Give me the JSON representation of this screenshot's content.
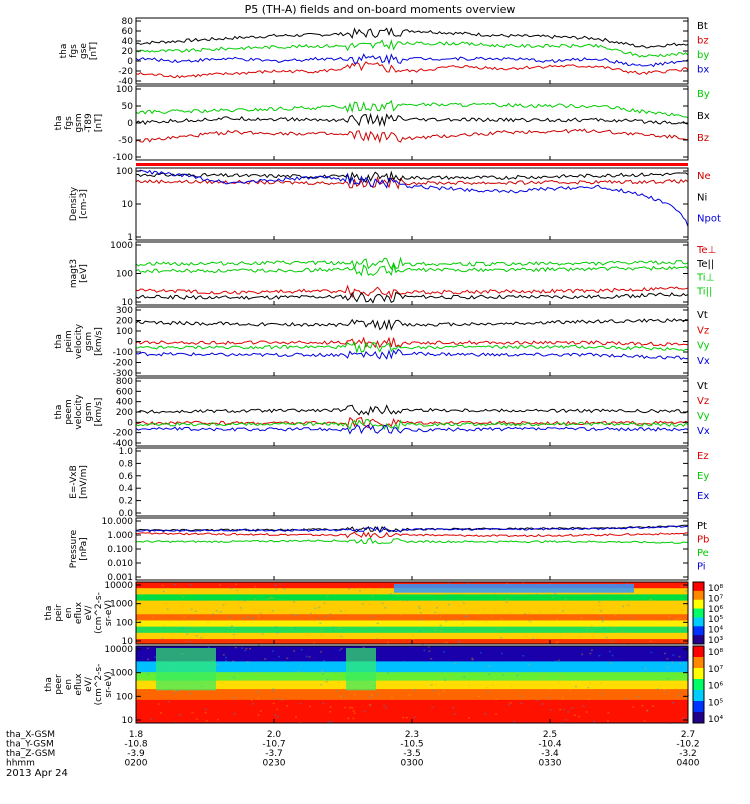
{
  "title": "P5 (TH-A) fields and on-board moments overview",
  "panels": [
    {
      "ylabel": [
        "tha",
        "fgs",
        "gse",
        "[nT]"
      ],
      "ticks": [
        "80",
        "60",
        "40",
        "20",
        "0",
        "-20",
        "-40"
      ],
      "legend": [
        {
          "label": "Bt",
          "color": "#000000"
        },
        {
          "label": "bz",
          "color": "#dd0000"
        },
        {
          "label": "by",
          "color": "#00cc00"
        },
        {
          "label": "bx",
          "color": "#0000dd"
        }
      ]
    },
    {
      "ylabel": [
        "tha",
        "fgs",
        "gsm",
        "-T89",
        "[nT]"
      ],
      "ticks": [
        "100",
        "50",
        "0",
        "-50",
        "-100"
      ],
      "legend": [
        {
          "label": "By",
          "color": "#00cc00"
        },
        {
          "label": "Bx",
          "color": "#000000"
        },
        {
          "label": "Bz",
          "color": "#cc0000"
        }
      ]
    },
    {
      "ylabel": [
        "Density",
        "[cm-3]"
      ],
      "ticks": [
        "100",
        "10",
        "1"
      ],
      "legend": [
        {
          "label": "Ne",
          "color": "#cc0000"
        },
        {
          "label": "Ni",
          "color": "#000000"
        },
        {
          "label": "Npot",
          "color": "#0000dd"
        }
      ]
    },
    {
      "ylabel": [
        "magt3",
        "[eV]"
      ],
      "ticks": [
        "1000",
        "100",
        "10"
      ],
      "legend": [
        {
          "label": "Te⊥",
          "color": "#dd0000"
        },
        {
          "label": "Te||",
          "color": "#000000"
        },
        {
          "label": "Ti⊥",
          "color": "#00cc00"
        },
        {
          "label": "Ti||",
          "color": "#00cc00"
        }
      ]
    },
    {
      "ylabel": [
        "tha",
        "peim",
        "velocity",
        "gsm",
        "[km/s]"
      ],
      "ticks": [
        "300",
        "200",
        "100",
        "0",
        "-100",
        "-200",
        "-300"
      ],
      "legend": [
        {
          "label": "Vt",
          "color": "#000000"
        },
        {
          "label": "Vz",
          "color": "#dd0000"
        },
        {
          "label": "Vy",
          "color": "#00cc00"
        },
        {
          "label": "Vx",
          "color": "#0000dd"
        }
      ]
    },
    {
      "ylabel": [
        "tha",
        "peem",
        "velocity",
        "gsm",
        "[km/s]"
      ],
      "ticks": [
        "800",
        "600",
        "400",
        "200",
        "0",
        "-200",
        "-400"
      ],
      "legend": [
        {
          "label": "Vt",
          "color": "#000000"
        },
        {
          "label": "Vz",
          "color": "#dd0000"
        },
        {
          "label": "Vy",
          "color": "#00cc00"
        },
        {
          "label": "Vx",
          "color": "#0000dd"
        }
      ]
    },
    {
      "ylabel": [
        "E=-VxB",
        "[mV/m]"
      ],
      "ticks": [
        "1.0",
        "0.8",
        "0.6",
        "0.4",
        "0.2",
        "0.0"
      ],
      "legend": [
        {
          "label": "Ez",
          "color": "#dd0000"
        },
        {
          "label": "Ey",
          "color": "#00cc00"
        },
        {
          "label": "Ex",
          "color": "#0000dd"
        }
      ]
    },
    {
      "ylabel": [
        "Pressure",
        "[nPa]"
      ],
      "ticks": [
        "10.000",
        "1.000",
        "0.100",
        "0.010",
        "0.001"
      ],
      "legend": [
        {
          "label": "Pt",
          "color": "#000000"
        },
        {
          "label": "Pb",
          "color": "#dd0000"
        },
        {
          "label": "Pe",
          "color": "#00cc00"
        },
        {
          "label": "Pi",
          "color": "#0000dd"
        }
      ]
    },
    {
      "ylabel": [
        "tha",
        "peir",
        "en",
        "eflux",
        "eV/",
        "(cm^2-s-",
        "sr-eV)"
      ],
      "ticks": [
        "10000",
        "1000",
        "100",
        "10"
      ],
      "colorbar": [
        "10⁸",
        "10⁷",
        "10⁶",
        "10⁵",
        "10⁴",
        "10³"
      ]
    },
    {
      "ylabel": [
        "tha",
        "peer",
        "en",
        "eflux",
        "eV/",
        "(cm^2-s-",
        "sr-eV)"
      ],
      "ticks": [
        "10000",
        "1000",
        "100",
        "10"
      ],
      "colorbar": [
        "10⁸",
        "10⁷",
        "10⁶",
        "10⁵",
        "10⁴"
      ]
    }
  ],
  "footer": {
    "rows": [
      {
        "label": "tha_X-GSM",
        "values": [
          "1.8",
          "2.0",
          "2.3",
          "2.5",
          "2.7"
        ]
      },
      {
        "label": "tha_Y-GSM",
        "values": [
          "-10.8",
          "-10.7",
          "-10.5",
          "-10.4",
          "-10.2"
        ]
      },
      {
        "label": "tha_Z-GSM",
        "values": [
          "-3.9",
          "-3.7",
          "-3.5",
          "-3.4",
          "-3.2"
        ]
      },
      {
        "label": "hhmm",
        "values": [
          "0200",
          "0230",
          "0300",
          "0330",
          "0400"
        ]
      }
    ],
    "date": "2013 Apr 24"
  },
  "chart_data": {
    "type": "line",
    "title": "P5 (TH-A) fields and on-board moments overview",
    "x": {
      "label": "hhmm",
      "ticks": [
        "0200",
        "0230",
        "0300",
        "0330",
        "0400"
      ],
      "range": [
        "0200",
        "0400"
      ]
    },
    "panels": [
      {
        "name": "tha fgs gse [nT]",
        "ylim": [
          -45,
          85
        ],
        "series": [
          {
            "name": "Bt",
            "x": [
              "0200",
              "0210",
              "0220",
              "0230",
              "0240",
              "0250",
              "0300",
              "0310",
              "0320",
              "0330",
              "0340",
              "0350",
              "0400"
            ],
            "values": [
              35,
              40,
              45,
              50,
              52,
              55,
              60,
              55,
              50,
              48,
              45,
              28,
              35
            ]
          },
          {
            "name": "bz",
            "x": [
              "0200",
              "0210",
              "0220",
              "0230",
              "0240",
              "0250",
              "0300",
              "0310",
              "0320",
              "0330",
              "0340",
              "0350",
              "0400"
            ],
            "values": [
              -25,
              -30,
              -25,
              -20,
              -20,
              -10,
              -20,
              -10,
              -15,
              -10,
              -10,
              -25,
              -15
            ]
          },
          {
            "name": "by",
            "x": [
              "0200",
              "0210",
              "0220",
              "0230",
              "0240",
              "0250",
              "0300",
              "0310",
              "0320",
              "0330",
              "0340",
              "0350",
              "0400"
            ],
            "values": [
              20,
              20,
              25,
              28,
              30,
              30,
              35,
              35,
              30,
              30,
              30,
              10,
              15
            ]
          },
          {
            "name": "bx",
            "x": [
              "0200",
              "0210",
              "0220",
              "0230",
              "0240",
              "0250",
              "0300",
              "0310",
              "0320",
              "0330",
              "0340",
              "0350",
              "0400"
            ],
            "values": [
              5,
              0,
              5,
              0,
              5,
              5,
              5,
              5,
              5,
              0,
              5,
              -10,
              0
            ]
          }
        ]
      },
      {
        "name": "tha fgs gsm -T89 [nT]",
        "ylim": [
          -130,
          110
        ],
        "series": [
          {
            "name": "By",
            "x": [
              "0200",
              "0220",
              "0240",
              "0300",
              "0320",
              "0340",
              "0400"
            ],
            "values": [
              25,
              30,
              40,
              50,
              48,
              45,
              10
            ]
          },
          {
            "name": "Bx",
            "x": [
              "0200",
              "0220",
              "0240",
              "0300",
              "0320",
              "0340",
              "0400"
            ],
            "values": [
              -10,
              5,
              0,
              0,
              0,
              0,
              -10
            ]
          },
          {
            "name": "Bz",
            "x": [
              "0200",
              "0220",
              "0240",
              "0300",
              "0320",
              "0340",
              "0400"
            ],
            "values": [
              -70,
              -40,
              -45,
              -60,
              -40,
              -35,
              -60
            ]
          }
        ]
      },
      {
        "name": "Density [cm-3]",
        "scale": "log",
        "ylim": [
          1,
          250
        ],
        "series": [
          {
            "name": "Ne",
            "x": [
              "0200",
              "0220",
              "0240",
              "0300",
              "0320",
              "0340",
              "0400"
            ],
            "values": [
              90,
              85,
              80,
              80,
              80,
              85,
              90
            ]
          },
          {
            "name": "Ni",
            "x": [
              "0200",
              "0220",
              "0240",
              "0300",
              "0320",
              "0340",
              "0400"
            ],
            "values": [
              150,
              140,
              130,
              120,
              120,
              140,
              160
            ]
          },
          {
            "name": "Npot",
            "x": [
              "0200",
              "0220",
              "0240",
              "0300",
              "0320",
              "0340",
              "0400"
            ],
            "values": [
              200,
              80,
              120,
              60,
              40,
              60,
              3
            ]
          }
        ]
      },
      {
        "name": "magt3 [eV]",
        "scale": "log",
        "ylim": [
          10,
          1000
        ],
        "series": [
          {
            "name": "Te⊥",
            "x": [
              "0200",
              "0220",
              "0240",
              "0300",
              "0320",
              "0340",
              "0400"
            ],
            "values": [
              30,
              25,
              28,
              25,
              27,
              28,
              35
            ]
          },
          {
            "name": "Te||",
            "x": [
              "0200",
              "0220",
              "0240",
              "0300",
              "0320",
              "0340",
              "0400"
            ],
            "values": [
              18,
              17,
              18,
              18,
              18,
              18,
              22
            ]
          },
          {
            "name": "Ti⊥",
            "x": [
              "0200",
              "0220",
              "0240",
              "0300",
              "0320",
              "0340",
              "0400"
            ],
            "values": [
              200,
              210,
              220,
              200,
              200,
              210,
              230
            ]
          },
          {
            "name": "Ti||",
            "x": [
              "0200",
              "0220",
              "0240",
              "0300",
              "0320",
              "0340",
              "0400"
            ],
            "values": [
              120,
              120,
              130,
              130,
              130,
              140,
              150
            ]
          }
        ]
      },
      {
        "name": "tha peim velocity gsm [km/s]",
        "ylim": [
          -300,
          320
        ],
        "series": [
          {
            "name": "Vt",
            "x": [
              "0200",
              "0220",
              "0240",
              "0300",
              "0320",
              "0340",
              "0400"
            ],
            "values": [
              180,
              170,
              160,
              160,
              170,
              190,
              200
            ]
          },
          {
            "name": "Vz",
            "x": [
              "0200",
              "0220",
              "0240",
              "0300",
              "0320",
              "0340",
              "0400"
            ],
            "values": [
              0,
              0,
              0,
              0,
              0,
              0,
              -20
            ]
          },
          {
            "name": "Vy",
            "x": [
              "0200",
              "0220",
              "0240",
              "0300",
              "0320",
              "0340",
              "0400"
            ],
            "values": [
              -50,
              -40,
              -40,
              -40,
              -40,
              -40,
              -60
            ]
          },
          {
            "name": "Vx",
            "x": [
              "0200",
              "0220",
              "0240",
              "0300",
              "0320",
              "0340",
              "0400"
            ],
            "values": [
              -100,
              -110,
              -110,
              -100,
              -110,
              -110,
              -140
            ]
          }
        ]
      },
      {
        "name": "tha peem velocity gsm [km/s]",
        "ylim": [
          -420,
          820
        ],
        "series": [
          {
            "name": "Vt",
            "x": [
              "0200",
              "0220",
              "0240",
              "0300",
              "0320",
              "0340",
              "0400"
            ],
            "values": [
              200,
              220,
              230,
              240,
              230,
              220,
              210
            ]
          },
          {
            "name": "Vz",
            "x": [
              "0200",
              "0220",
              "0240",
              "0300",
              "0320",
              "0340",
              "0400"
            ],
            "values": [
              0,
              0,
              0,
              10,
              0,
              0,
              0
            ]
          },
          {
            "name": "Vy",
            "x": [
              "0200",
              "0220",
              "0240",
              "0300",
              "0320",
              "0340",
              "0400"
            ],
            "values": [
              -30,
              -20,
              -20,
              -30,
              -20,
              -20,
              -30
            ]
          },
          {
            "name": "Vx",
            "x": [
              "0200",
              "0220",
              "0240",
              "0300",
              "0320",
              "0340",
              "0400"
            ],
            "values": [
              -100,
              -120,
              -110,
              -130,
              -110,
              -110,
              -120
            ]
          }
        ]
      },
      {
        "name": "E=-VxB [mV/m]",
        "ylim": [
          0,
          1
        ],
        "series": []
      },
      {
        "name": "Pressure [nPa]",
        "scale": "log",
        "ylim": [
          0.001,
          10
        ],
        "series": [
          {
            "name": "Pt",
            "x": [
              "0200",
              "0220",
              "0240",
              "0300",
              "0320",
              "0340",
              "0400"
            ],
            "values": [
              1.6,
              1.7,
              1.8,
              1.9,
              2.0,
              2.2,
              3.0
            ]
          },
          {
            "name": "Pb",
            "x": [
              "0200",
              "0220",
              "0240",
              "0300",
              "0320",
              "0340",
              "0400"
            ],
            "values": [
              1.0,
              0.9,
              0.8,
              0.8,
              0.7,
              0.8,
              1.0
            ]
          },
          {
            "name": "Pe",
            "x": [
              "0200",
              "0220",
              "0240",
              "0300",
              "0320",
              "0340",
              "0400"
            ],
            "values": [
              0.3,
              0.3,
              0.35,
              0.3,
              0.3,
              0.3,
              0.25
            ]
          },
          {
            "name": "Pi",
            "x": [
              "0200",
              "0220",
              "0240",
              "0300",
              "0320",
              "0340",
              "0400"
            ],
            "values": [
              1.5,
              1.6,
              1.6,
              1.8,
              1.9,
              2.0,
              2.8
            ]
          }
        ]
      }
    ],
    "spectrograms": [
      {
        "name": "tha peir en eflux",
        "scale": "log",
        "ylim": [
          10,
          20000
        ],
        "colorbar_range": [
          "10³",
          "10⁸"
        ]
      },
      {
        "name": "tha peer en eflux",
        "scale": "log",
        "ylim": [
          10,
          20000
        ],
        "colorbar_range": [
          "10⁴",
          "10⁸"
        ]
      }
    ]
  }
}
